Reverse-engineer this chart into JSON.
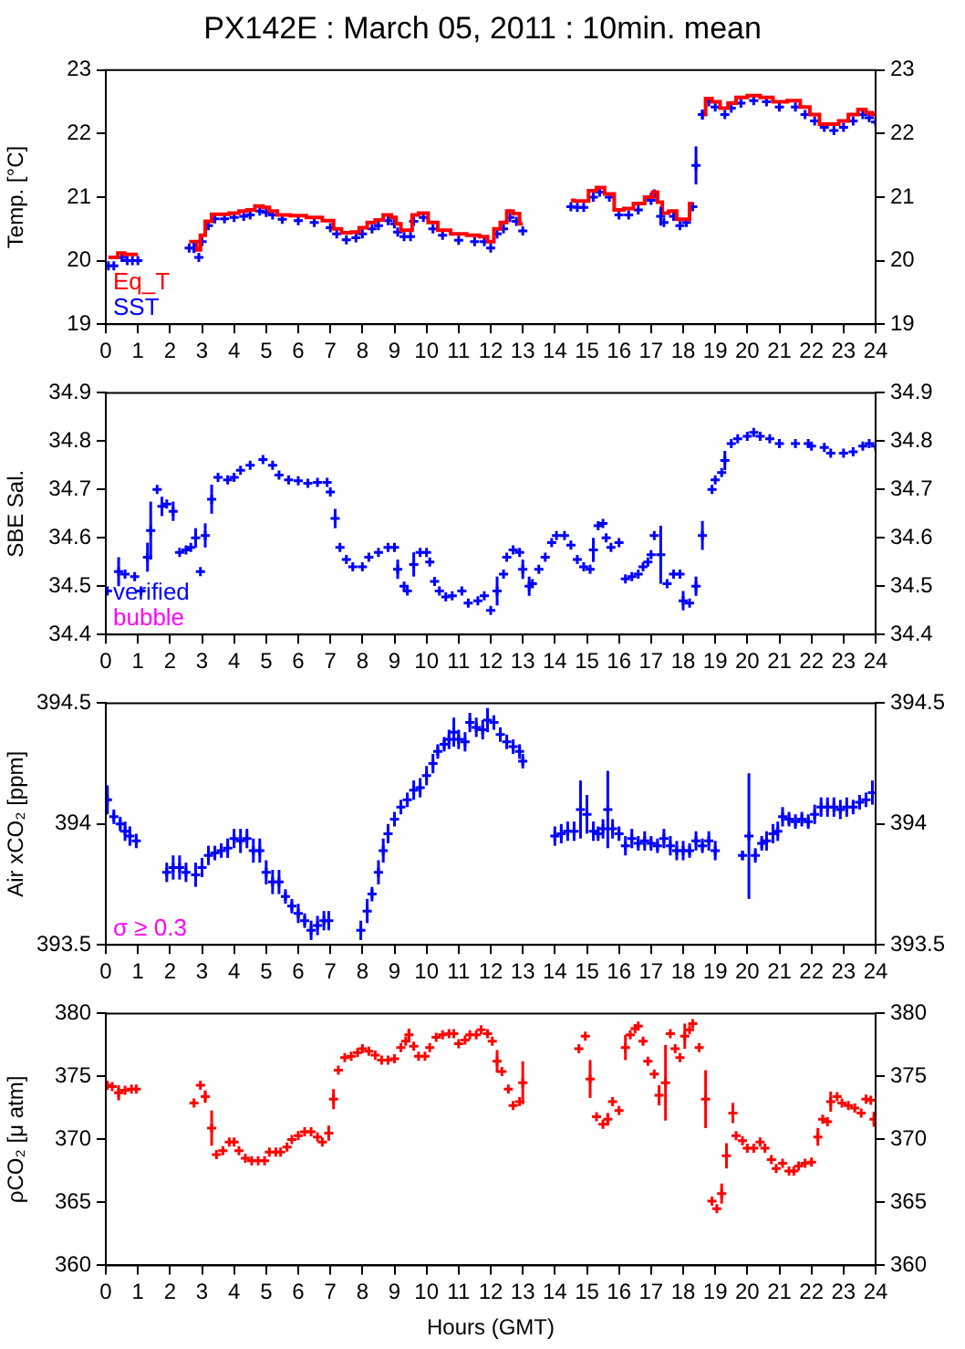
{
  "chart_data": [
    {
      "type": "scatter",
      "title": "PX142E : March 05, 2011 : 10min. mean",
      "ylabel": "Temp. [°C]",
      "xlim": [
        0,
        24
      ],
      "xticks": [
        0,
        1,
        2,
        3,
        4,
        5,
        6,
        7,
        8,
        9,
        10,
        11,
        12,
        13,
        14,
        15,
        16,
        17,
        18,
        19,
        20,
        21,
        22,
        23,
        24
      ],
      "ylim": [
        19,
        23
      ],
      "yticks": [
        19,
        20,
        21,
        22,
        23
      ],
      "y2lim": [
        19,
        23
      ],
      "y2ticks": [
        19,
        20,
        21,
        22,
        23
      ],
      "grid": false,
      "legend": "bottom left",
      "x": [
        0.08,
        0.25,
        0.5,
        0.67,
        0.83,
        1.0,
        1.8,
        2.6,
        2.75,
        2.9,
        3.0,
        3.2,
        3.4,
        3.7,
        4.0,
        4.3,
        4.5,
        4.8,
        5.0,
        5.2,
        5.5,
        6.0,
        6.5,
        7.0,
        7.2,
        7.5,
        7.8,
        8.0,
        8.3,
        8.5,
        8.8,
        9.0,
        9.1,
        9.3,
        9.5,
        9.6,
        9.9,
        10.2,
        10.5,
        11.0,
        11.5,
        11.8,
        12.0,
        12.2,
        12.4,
        12.6,
        12.8,
        13.0,
        13.7,
        14.5,
        14.7,
        14.9,
        15.2,
        15.4,
        15.7,
        16.0,
        16.3,
        16.6,
        17.0,
        17.1,
        17.3,
        17.4,
        17.7,
        17.9,
        18.1,
        18.3,
        18.4,
        18.6,
        18.8,
        19.0,
        19.3,
        19.5,
        19.8,
        20.2,
        20.6,
        21.0,
        21.5,
        21.8,
        22.1,
        22.4,
        22.7,
        23.0,
        23.3,
        23.6,
        23.8,
        24.0
      ],
      "series": [
        {
          "name": "Eq_T",
          "type": "step",
          "color": "#ff0000",
          "values": [
            20.05,
            20.05,
            20.12,
            20.1,
            20.1,
            20.1,
            null,
            20.3,
            20.3,
            20.17,
            20.4,
            20.62,
            20.73,
            20.73,
            20.75,
            20.78,
            20.8,
            20.86,
            20.84,
            20.78,
            20.72,
            20.71,
            20.68,
            20.63,
            20.5,
            20.44,
            20.45,
            20.52,
            20.6,
            20.64,
            20.72,
            20.68,
            20.58,
            20.48,
            20.48,
            20.72,
            20.75,
            20.6,
            20.48,
            20.42,
            20.4,
            20.38,
            20.3,
            20.5,
            20.6,
            20.78,
            20.74,
            20.58,
            null,
            20.95,
            20.94,
            20.94,
            21.1,
            21.15,
            21.05,
            20.8,
            20.82,
            20.9,
            21.0,
            21.08,
            20.92,
            20.75,
            20.78,
            20.65,
            20.65,
            20.9,
            null,
            22.3,
            22.55,
            22.5,
            22.4,
            22.48,
            22.57,
            22.6,
            22.57,
            22.5,
            22.52,
            22.42,
            22.3,
            22.15,
            22.15,
            22.2,
            22.3,
            22.38,
            22.33,
            22.3
          ]
        },
        {
          "name": "SST",
          "marker": "cross",
          "color": "#0000ff",
          "values": [
            19.92,
            19.92,
            20.05,
            20.0,
            20.0,
            20.0,
            null,
            20.2,
            20.2,
            20.05,
            20.3,
            20.55,
            20.66,
            20.66,
            20.68,
            20.7,
            20.72,
            20.78,
            20.76,
            20.72,
            20.65,
            20.63,
            20.6,
            20.52,
            20.42,
            20.33,
            20.36,
            20.42,
            20.5,
            20.55,
            20.63,
            20.58,
            20.45,
            20.38,
            20.38,
            20.62,
            20.68,
            20.5,
            20.4,
            20.32,
            20.3,
            20.3,
            20.2,
            20.42,
            20.5,
            20.68,
            20.62,
            20.47,
            null,
            20.85,
            20.84,
            20.84,
            21.0,
            21.08,
            21.0,
            20.72,
            20.72,
            20.8,
            20.95,
            21.05,
            20.7,
            20.6,
            20.7,
            20.55,
            20.6,
            20.85,
            21.5,
            22.3,
            22.5,
            22.42,
            22.3,
            22.4,
            22.48,
            22.52,
            22.5,
            22.42,
            22.42,
            22.3,
            22.2,
            22.1,
            22.05,
            22.1,
            22.2,
            22.3,
            22.25,
            22.18
          ],
          "errors": [
            null,
            null,
            null,
            null,
            null,
            null,
            null,
            null,
            0.08,
            null,
            null,
            null,
            null,
            null,
            null,
            null,
            null,
            null,
            null,
            null,
            null,
            null,
            null,
            null,
            null,
            null,
            null,
            null,
            null,
            null,
            null,
            null,
            null,
            null,
            null,
            null,
            null,
            null,
            null,
            null,
            null,
            null,
            null,
            null,
            null,
            null,
            null,
            null,
            null,
            null,
            null,
            null,
            null,
            null,
            null,
            null,
            null,
            null,
            null,
            null,
            0.15,
            null,
            null,
            null,
            null,
            null,
            0.3,
            0.08,
            null,
            null,
            null,
            null,
            null,
            null,
            null,
            null,
            null,
            null,
            null,
            null,
            null,
            null,
            null,
            null,
            null,
            null
          ]
        }
      ]
    },
    {
      "type": "scatter",
      "ylabel": "SBE Sal.",
      "xlim": [
        0,
        24
      ],
      "xticks": [
        0,
        1,
        2,
        3,
        4,
        5,
        6,
        7,
        8,
        9,
        10,
        11,
        12,
        13,
        14,
        15,
        16,
        17,
        18,
        19,
        20,
        21,
        22,
        23,
        24
      ],
      "ylim": [
        34.4,
        34.9
      ],
      "yticks": [
        34.4,
        34.5,
        34.6,
        34.7,
        34.8,
        34.9
      ],
      "y2lim": [
        34.4,
        34.9
      ],
      "y2ticks": [
        34.4,
        34.5,
        34.6,
        34.7,
        34.8,
        34.9
      ],
      "grid": false,
      "legend": "bottom left",
      "marker": "cross",
      "annotations": [
        "bubble"
      ],
      "x": [
        0.05,
        0.4,
        0.6,
        0.9,
        1.1,
        1.3,
        1.4,
        1.6,
        1.75,
        1.9,
        2.1,
        2.3,
        2.5,
        2.65,
        2.8,
        2.95,
        3.1,
        3.3,
        3.5,
        3.8,
        4.0,
        4.2,
        4.5,
        4.9,
        5.2,
        5.4,
        5.7,
        6.0,
        6.3,
        6.6,
        6.9,
        7.0,
        7.15,
        7.3,
        7.5,
        7.7,
        8.0,
        8.2,
        8.5,
        8.8,
        9.0,
        9.1,
        9.3,
        9.4,
        9.6,
        9.8,
        10.0,
        10.1,
        10.25,
        10.4,
        10.6,
        10.8,
        11.1,
        11.3,
        11.6,
        11.8,
        12.0,
        12.2,
        12.4,
        12.5,
        12.7,
        12.9,
        13.0,
        13.2,
        13.3,
        13.5,
        13.7,
        13.9,
        14.05,
        14.3,
        14.5,
        14.7,
        14.9,
        15.1,
        15.2,
        15.35,
        15.5,
        15.6,
        15.75,
        16.0,
        16.2,
        16.4,
        16.6,
        16.75,
        16.9,
        17.0,
        17.1,
        17.3,
        17.5,
        17.7,
        17.9,
        18.0,
        18.2,
        18.4,
        18.6,
        18.9,
        19.0,
        19.2,
        19.3,
        19.5,
        19.7,
        20.0,
        20.2,
        20.4,
        20.7,
        21.0,
        21.5,
        21.9,
        22.0,
        22.4,
        22.6,
        23.0,
        23.3,
        23.6,
        23.8,
        24.0
      ],
      "series": [
        {
          "name": "verified",
          "color": "#0000ff",
          "values": [
            34.49,
            34.53,
            34.525,
            34.52,
            34.49,
            34.56,
            34.615,
            34.7,
            34.665,
            34.67,
            34.655,
            34.57,
            34.575,
            34.58,
            34.6,
            34.53,
            34.605,
            34.68,
            34.725,
            34.72,
            34.725,
            34.74,
            34.75,
            34.762,
            34.75,
            34.73,
            34.72,
            34.718,
            34.713,
            34.715,
            34.715,
            34.695,
            34.64,
            34.58,
            34.555,
            34.54,
            34.54,
            34.56,
            34.57,
            34.58,
            34.58,
            34.535,
            34.5,
            34.49,
            34.545,
            34.57,
            34.57,
            34.55,
            34.51,
            34.49,
            34.478,
            34.48,
            34.49,
            34.465,
            34.47,
            34.48,
            34.45,
            34.49,
            34.525,
            34.56,
            34.575,
            34.57,
            34.535,
            34.5,
            34.505,
            34.535,
            34.56,
            34.59,
            34.605,
            34.605,
            34.585,
            34.555,
            34.54,
            34.535,
            34.575,
            34.625,
            34.63,
            34.6,
            34.58,
            34.59,
            34.515,
            34.52,
            34.525,
            34.54,
            34.55,
            34.565,
            34.605,
            34.565,
            34.505,
            34.525,
            34.525,
            34.47,
            34.465,
            34.5,
            34.605,
            34.7,
            34.72,
            34.735,
            34.76,
            34.795,
            34.805,
            34.81,
            34.818,
            34.81,
            34.805,
            34.795,
            34.795,
            34.795,
            34.79,
            34.787,
            34.775,
            34.775,
            34.778,
            34.79,
            34.795,
            34.79
          ],
          "errors": [
            null,
            0.03,
            null,
            null,
            null,
            0.03,
            0.06,
            null,
            0.02,
            null,
            0.02,
            null,
            null,
            null,
            0.02,
            null,
            0.025,
            0.03,
            null,
            null,
            null,
            null,
            null,
            null,
            null,
            null,
            null,
            null,
            null,
            null,
            null,
            null,
            0.02,
            null,
            null,
            null,
            null,
            null,
            null,
            null,
            null,
            0.02,
            null,
            null,
            0.025,
            null,
            null,
            null,
            null,
            null,
            null,
            null,
            null,
            null,
            null,
            null,
            null,
            0.03,
            null,
            null,
            null,
            null,
            0.02,
            0.02,
            null,
            null,
            null,
            null,
            null,
            null,
            null,
            null,
            null,
            null,
            0.025,
            null,
            null,
            null,
            null,
            null,
            null,
            null,
            null,
            null,
            null,
            null,
            null,
            0.06,
            null,
            null,
            null,
            0.02,
            null,
            0.02,
            0.03,
            null,
            null,
            null,
            0.02,
            null,
            null,
            null,
            null,
            null,
            null,
            null,
            null,
            null,
            null,
            null,
            null,
            null,
            null,
            null,
            null,
            null
          ]
        }
      ]
    },
    {
      "type": "scatter",
      "ylabel": "Air xCO₂ [ppm]",
      "xlim": [
        0,
        24
      ],
      "xticks": [
        0,
        1,
        2,
        3,
        4,
        5,
        6,
        7,
        8,
        9,
        10,
        11,
        12,
        13,
        14,
        15,
        16,
        17,
        18,
        19,
        20,
        21,
        22,
        23,
        24
      ],
      "ylim": [
        393.5,
        394.5
      ],
      "yticks": [
        393.5,
        394,
        394.5
      ],
      "y2lim": [
        393.5,
        394.5
      ],
      "y2ticks": [
        393.5,
        394,
        394.5
      ],
      "grid": false,
      "marker": "cross",
      "annotations": [
        "σ ≥ 0.3"
      ],
      "x": [
        0.05,
        0.25,
        0.45,
        0.6,
        0.75,
        0.95,
        1.9,
        2.1,
        2.3,
        2.5,
        2.8,
        3.0,
        3.2,
        3.4,
        3.6,
        3.8,
        4.0,
        4.2,
        4.4,
        4.6,
        4.8,
        5.0,
        5.2,
        5.4,
        5.6,
        5.8,
        6.0,
        6.2,
        6.4,
        6.6,
        6.8,
        6.95,
        7.95,
        8.15,
        8.3,
        8.5,
        8.65,
        8.8,
        9.0,
        9.2,
        9.4,
        9.6,
        9.8,
        10.0,
        10.2,
        10.35,
        10.55,
        10.7,
        10.85,
        11.0,
        11.2,
        11.35,
        11.55,
        11.75,
        11.9,
        12.1,
        12.3,
        12.5,
        12.7,
        12.9,
        13.0,
        14.0,
        14.2,
        14.4,
        14.6,
        14.8,
        15.0,
        15.2,
        15.35,
        15.5,
        15.65,
        15.8,
        16.0,
        16.2,
        16.4,
        16.6,
        16.8,
        17.0,
        17.2,
        17.4,
        17.6,
        17.8,
        18.0,
        18.2,
        18.4,
        18.6,
        18.8,
        19.0,
        19.85,
        20.05,
        20.25,
        20.45,
        20.6,
        20.8,
        20.95,
        21.1,
        21.3,
        21.5,
        21.7,
        21.9,
        22.1,
        22.3,
        22.5,
        22.7,
        22.9,
        23.1,
        23.3,
        23.5,
        23.7,
        23.9
      ],
      "series": [
        {
          "color": "#0000ff",
          "values": [
            394.1,
            394.03,
            394.0,
            393.97,
            393.95,
            393.93,
            393.8,
            393.82,
            393.82,
            393.8,
            393.79,
            393.82,
            393.87,
            393.88,
            393.89,
            393.9,
            393.94,
            393.93,
            393.94,
            393.89,
            393.89,
            393.8,
            393.76,
            393.76,
            393.7,
            393.66,
            393.63,
            393.6,
            393.56,
            393.58,
            393.6,
            393.6,
            393.56,
            393.64,
            393.71,
            393.8,
            393.89,
            393.96,
            394.02,
            394.07,
            394.1,
            394.14,
            394.15,
            394.2,
            394.25,
            394.3,
            394.33,
            394.35,
            394.38,
            394.35,
            394.34,
            394.42,
            394.4,
            394.39,
            394.43,
            394.42,
            394.37,
            394.34,
            394.32,
            394.3,
            394.26,
            393.95,
            393.96,
            393.97,
            393.97,
            394.06,
            394.04,
            393.97,
            393.96,
            393.98,
            394.06,
            393.98,
            393.96,
            393.91,
            393.94,
            393.92,
            393.93,
            393.92,
            393.91,
            393.94,
            393.91,
            393.89,
            393.89,
            393.89,
            393.93,
            393.91,
            393.93,
            393.89,
            393.87,
            393.95,
            393.87,
            393.92,
            393.93,
            393.96,
            393.97,
            394.03,
            394.02,
            394.01,
            394.02,
            394.01,
            394.04,
            394.07,
            394.07,
            394.07,
            394.06,
            394.07,
            394.07,
            394.09,
            394.1,
            394.13
          ],
          "errors": [
            0.06,
            0.03,
            0.03,
            0.04,
            0.04,
            0.03,
            0.04,
            0.05,
            0.05,
            0.04,
            0.05,
            0.04,
            0.04,
            0.03,
            0.03,
            0.04,
            0.04,
            0.05,
            0.04,
            0.05,
            0.05,
            0.05,
            0.05,
            0.05,
            0.03,
            0.03,
            0.04,
            0.03,
            0.04,
            0.04,
            0.04,
            0.04,
            0.04,
            0.05,
            0.03,
            0.05,
            0.05,
            0.04,
            0.03,
            0.03,
            0.03,
            0.04,
            0.04,
            0.04,
            0.04,
            0.03,
            0.03,
            0.04,
            0.06,
            0.04,
            0.04,
            0.04,
            0.04,
            0.04,
            0.05,
            0.03,
            0.03,
            0.03,
            0.03,
            0.03,
            0.03,
            0.04,
            0.04,
            0.04,
            0.04,
            0.12,
            0.08,
            0.04,
            0.03,
            0.04,
            0.16,
            0.04,
            0.03,
            0.04,
            0.04,
            0.03,
            0.04,
            0.03,
            0.03,
            0.04,
            0.04,
            0.04,
            0.04,
            0.03,
            0.04,
            0.03,
            0.04,
            0.04,
            0.02,
            0.26,
            0.03,
            0.03,
            0.04,
            0.04,
            0.04,
            0.04,
            0.03,
            0.03,
            0.03,
            0.03,
            0.04,
            0.04,
            0.04,
            0.04,
            0.04,
            0.04,
            0.03,
            0.03,
            0.03,
            0.05
          ]
        }
      ]
    },
    {
      "type": "scatter",
      "xlabel": "Hours (GMT)",
      "ylabel": "ρCO₂ [μ atm]",
      "xlim": [
        0,
        24
      ],
      "xticks": [
        0,
        1,
        2,
        3,
        4,
        5,
        6,
        7,
        8,
        9,
        10,
        11,
        12,
        13,
        14,
        15,
        16,
        17,
        18,
        19,
        20,
        21,
        22,
        23,
        24
      ],
      "ylim": [
        360,
        380
      ],
      "yticks": [
        360,
        365,
        370,
        375,
        380
      ],
      "y2lim": [
        360,
        380
      ],
      "y2ticks": [
        360,
        365,
        370,
        375,
        380
      ],
      "grid": false,
      "marker": "cross",
      "x": [
        0.05,
        0.2,
        0.4,
        0.6,
        0.8,
        0.95,
        2.75,
        2.95,
        3.1,
        3.3,
        3.45,
        3.65,
        3.85,
        4.0,
        4.15,
        4.35,
        4.55,
        4.75,
        4.95,
        5.1,
        5.3,
        5.45,
        5.65,
        5.8,
        6.0,
        6.2,
        6.4,
        6.6,
        6.75,
        6.95,
        7.1,
        7.25,
        7.45,
        7.65,
        7.85,
        8.0,
        8.2,
        8.4,
        8.6,
        8.8,
        9.0,
        9.2,
        9.35,
        9.45,
        9.6,
        9.75,
        9.95,
        10.1,
        10.3,
        10.5,
        10.7,
        10.85,
        11.0,
        11.2,
        11.35,
        11.55,
        11.7,
        11.9,
        12.05,
        12.2,
        12.35,
        12.55,
        12.7,
        12.9,
        13.0,
        14.75,
        14.95,
        15.1,
        15.3,
        15.5,
        15.65,
        15.8,
        16.0,
        16.2,
        16.35,
        16.5,
        16.6,
        16.75,
        16.9,
        17.1,
        17.25,
        17.45,
        17.6,
        17.75,
        17.9,
        18.05,
        18.2,
        18.3,
        18.5,
        18.7,
        18.9,
        19.05,
        19.2,
        19.35,
        19.55,
        19.65,
        19.85,
        20.0,
        20.2,
        20.4,
        20.55,
        20.75,
        20.9,
        21.1,
        21.3,
        21.45,
        21.6,
        21.8,
        22.0,
        22.2,
        22.35,
        22.5,
        22.6,
        22.8,
        22.95,
        23.15,
        23.35,
        23.55,
        23.7,
        23.85,
        23.95
      ],
      "series": [
        {
          "color": "#ff0000",
          "values": [
            374.3,
            374.2,
            373.7,
            373.9,
            374.0,
            374.0,
            372.9,
            374.3,
            373.4,
            370.9,
            368.8,
            369.1,
            369.8,
            369.8,
            369.1,
            368.5,
            368.3,
            368.3,
            368.3,
            369.0,
            369.0,
            369.0,
            369.4,
            370.0,
            370.3,
            370.6,
            370.6,
            370.2,
            369.8,
            370.5,
            373.2,
            375.5,
            376.5,
            376.6,
            376.9,
            377.2,
            377.0,
            376.7,
            376.3,
            376.3,
            376.4,
            377.3,
            377.8,
            378.3,
            377.4,
            376.6,
            376.6,
            377.3,
            378.1,
            378.3,
            378.4,
            378.4,
            377.6,
            377.9,
            378.3,
            378.3,
            378.7,
            378.4,
            377.8,
            376.2,
            375.4,
            374.0,
            372.7,
            373.0,
            374.5,
            377.2,
            378.2,
            374.8,
            371.8,
            371.2,
            371.6,
            373.0,
            372.3,
            377.3,
            378.3,
            378.8,
            379.0,
            377.8,
            376.2,
            375.2,
            373.5,
            374.5,
            378.4,
            377.2,
            376.5,
            378.2,
            378.7,
            379.2,
            377.3,
            373.2,
            365.1,
            364.5,
            365.7,
            368.7,
            372.1,
            370.3,
            369.9,
            369.3,
            369.3,
            369.8,
            369.3,
            368.4,
            367.7,
            368.1,
            367.5,
            367.5,
            367.9,
            368.1,
            368.2,
            370.2,
            371.6,
            371.4,
            373.0,
            373.4,
            372.9,
            372.7,
            372.5,
            372.1,
            373.2,
            373.1,
            371.6
          ],
          "errors": [
            null,
            null,
            0.6,
            null,
            null,
            null,
            null,
            null,
            0.5,
            1.4,
            null,
            null,
            null,
            null,
            null,
            null,
            null,
            null,
            null,
            null,
            null,
            null,
            null,
            null,
            null,
            null,
            null,
            null,
            null,
            0.6,
            0.8,
            null,
            null,
            null,
            null,
            null,
            null,
            null,
            null,
            null,
            null,
            null,
            null,
            0.5,
            null,
            null,
            null,
            null,
            null,
            null,
            null,
            null,
            null,
            null,
            null,
            null,
            null,
            null,
            null,
            0.9,
            null,
            null,
            null,
            null,
            1.7,
            null,
            null,
            1.5,
            null,
            null,
            0.5,
            null,
            null,
            1.0,
            null,
            null,
            null,
            null,
            null,
            null,
            0.8,
            3.0,
            null,
            null,
            null,
            1.0,
            null,
            null,
            null,
            2.3,
            null,
            null,
            0.8,
            1.0,
            0.8,
            null,
            null,
            null,
            null,
            null,
            null,
            null,
            null,
            null,
            null,
            null,
            null,
            null,
            null,
            0.7,
            null,
            null,
            0.8,
            null,
            null,
            null,
            null,
            null,
            null,
            null,
            0.6
          ]
        }
      ]
    }
  ]
}
